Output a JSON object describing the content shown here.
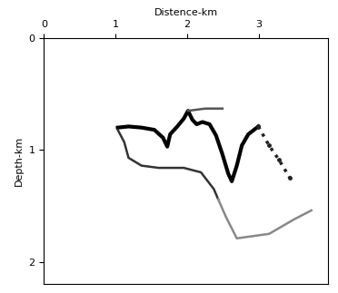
{
  "chart_data": {
    "type": "line",
    "xlabel": "Distence-km",
    "ylabel": "Depth-km",
    "xlim": [
      0,
      3.96
    ],
    "ylim": [
      2.2,
      0
    ],
    "xticks": [
      0,
      1,
      2,
      3
    ],
    "yticks": [
      0,
      1,
      2
    ],
    "grid": false,
    "series": [
      {
        "color": "#000000",
        "line_style": "solid",
        "x": [
          1.03,
          1.18,
          1.36,
          1.54,
          1.66,
          1.72,
          1.76,
          1.86,
          1.95,
          2.01,
          2.07,
          2.13,
          2.21,
          2.31,
          2.4,
          2.49,
          2.57,
          2.62,
          2.69,
          2.76,
          2.85,
          2.99
        ],
        "values": [
          0.8,
          0.79,
          0.8,
          0.82,
          0.89,
          0.97,
          0.86,
          0.79,
          0.72,
          0.65,
          0.73,
          0.77,
          0.75,
          0.77,
          0.87,
          1.04,
          1.21,
          1.28,
          1.14,
          0.96,
          0.86,
          0.79
        ]
      },
      {
        "color": "#555555",
        "line_style": "solid",
        "x": [
          2.01,
          2.25,
          2.49
        ],
        "values": [
          0.65,
          0.63,
          0.63
        ]
      },
      {
        "color": "#333333",
        "line_style": "solid",
        "x": [
          1.03,
          1.12,
          1.18,
          1.36,
          1.6,
          1.95,
          2.19,
          2.37,
          2.43
        ],
        "values": [
          0.82,
          0.93,
          1.07,
          1.14,
          1.16,
          1.16,
          1.2,
          1.35,
          1.44
        ]
      },
      {
        "color": "#888888",
        "line_style": "solid",
        "x": [
          2.43,
          2.54,
          2.69,
          3.14,
          3.49,
          3.73
        ],
        "values": [
          1.44,
          1.6,
          1.79,
          1.75,
          1.62,
          1.54
        ]
      },
      {
        "color": "#222222",
        "line_style": "dotted",
        "x": [
          2.99,
          3.14,
          3.28,
          3.43
        ],
        "values": [
          0.79,
          0.96,
          1.09,
          1.25
        ]
      }
    ]
  }
}
